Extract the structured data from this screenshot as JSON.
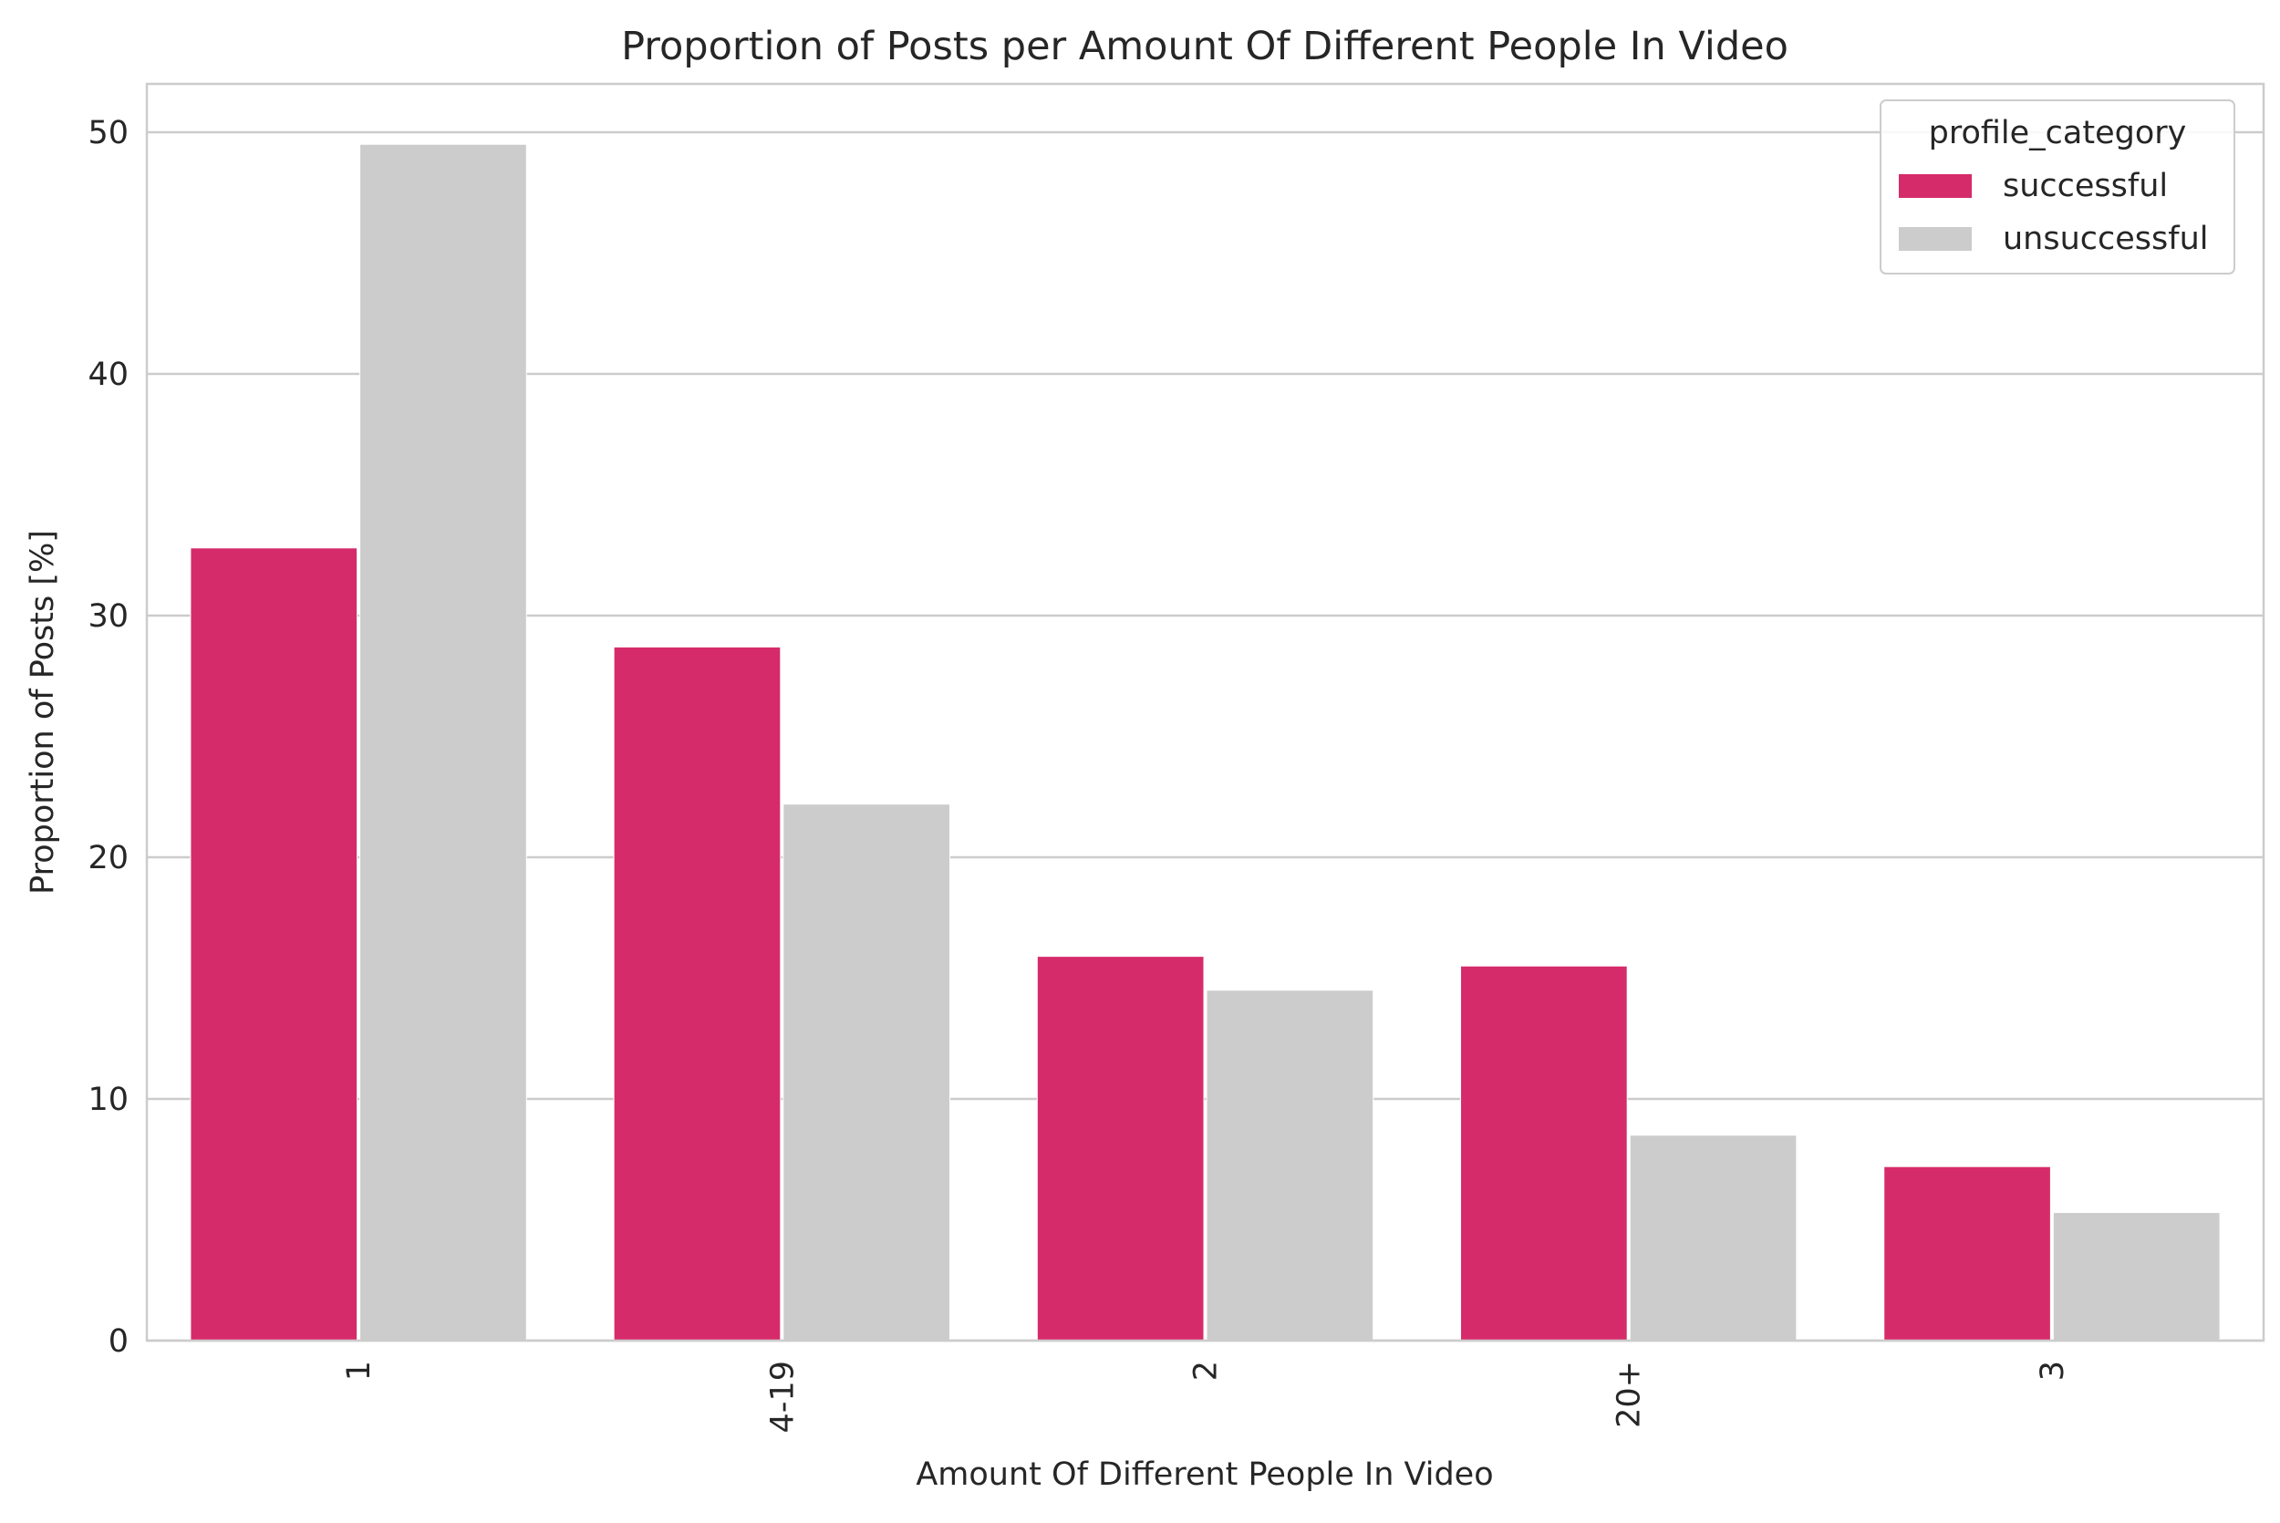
{
  "chart_data": {
    "type": "bar",
    "title": "Proportion of Posts per Amount Of Different People In Video",
    "xlabel": "Amount Of Different People In Video",
    "ylabel": "Proportion of Posts [%]",
    "categories": [
      "1",
      "4-19",
      "2",
      "20+",
      "3"
    ],
    "series": [
      {
        "name": "successful",
        "color": "#d62b6a",
        "values": [
          32.8,
          28.7,
          15.9,
          15.5,
          7.2
        ]
      },
      {
        "name": "unsuccessful",
        "color": "#cccccc",
        "values": [
          49.5,
          22.2,
          14.5,
          8.5,
          5.3
        ]
      }
    ],
    "ylim": [
      0,
      52
    ],
    "yticks": [
      0,
      10,
      20,
      30,
      40,
      50
    ],
    "grid": true,
    "legend": {
      "title": "profile_category",
      "placement": "top-right"
    }
  }
}
